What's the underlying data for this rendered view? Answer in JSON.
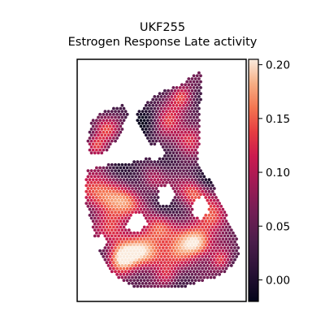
{
  "chart_data": {
    "type": "heatmap",
    "title": "UKF255",
    "subtitle": "Estrogen Response Late activity",
    "xlabel": "",
    "ylabel": "",
    "colormap": "rocket",
    "colorbar": {
      "min": -0.02,
      "max": 0.205,
      "ticks": [
        "0.00",
        "0.05",
        "0.10",
        "0.15",
        "0.20"
      ],
      "tick_values": [
        0.0,
        0.05,
        0.1,
        0.15,
        0.2
      ]
    },
    "grid": false,
    "colors": {
      "low": "#03051a",
      "mid": "#cb1b4f",
      "high": "#faebdd"
    }
  }
}
